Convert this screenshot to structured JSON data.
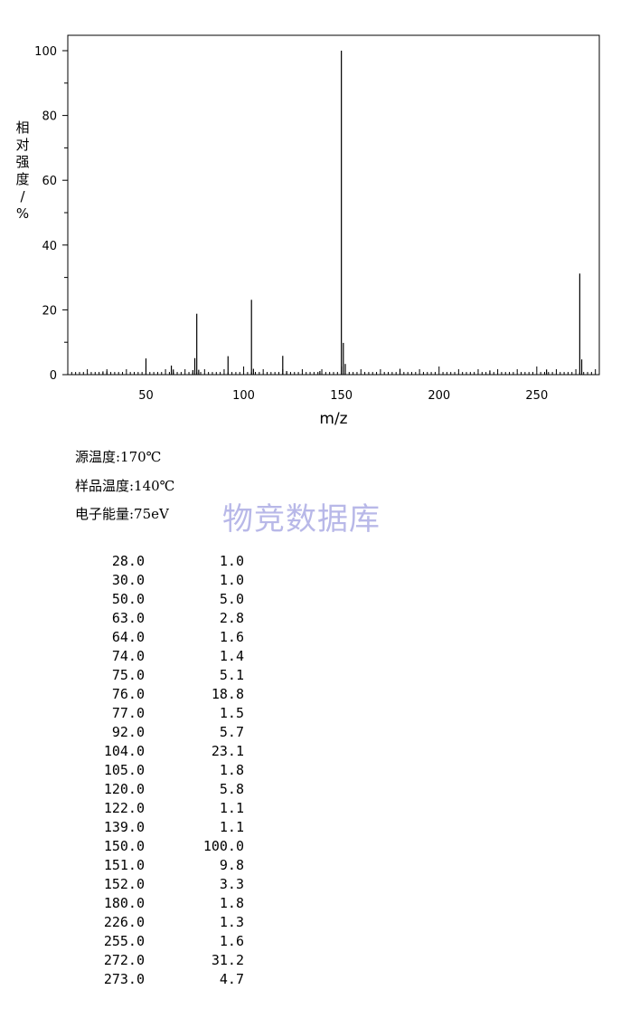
{
  "chart_data": {
    "type": "bar",
    "xlabel": "m/z",
    "ylabel": "相对强度/%",
    "xlim": [
      10,
      282
    ],
    "ylim": [
      0,
      105
    ],
    "xticks": [
      50,
      100,
      150,
      200,
      250
    ],
    "yticks": [
      0,
      20,
      40,
      60,
      80,
      100
    ],
    "peaks": [
      {
        "mz": 28.0,
        "intensity": 1.0
      },
      {
        "mz": 30.0,
        "intensity": 1.0
      },
      {
        "mz": 50.0,
        "intensity": 5.0
      },
      {
        "mz": 63.0,
        "intensity": 2.8
      },
      {
        "mz": 64.0,
        "intensity": 1.6
      },
      {
        "mz": 74.0,
        "intensity": 1.4
      },
      {
        "mz": 75.0,
        "intensity": 5.1
      },
      {
        "mz": 76.0,
        "intensity": 18.8
      },
      {
        "mz": 77.0,
        "intensity": 1.5
      },
      {
        "mz": 92.0,
        "intensity": 5.7
      },
      {
        "mz": 104.0,
        "intensity": 23.1
      },
      {
        "mz": 105.0,
        "intensity": 1.8
      },
      {
        "mz": 120.0,
        "intensity": 5.8
      },
      {
        "mz": 122.0,
        "intensity": 1.1
      },
      {
        "mz": 139.0,
        "intensity": 1.1
      },
      {
        "mz": 150.0,
        "intensity": 100.0
      },
      {
        "mz": 151.0,
        "intensity": 9.8
      },
      {
        "mz": 152.0,
        "intensity": 3.3
      },
      {
        "mz": 180.0,
        "intensity": 1.8
      },
      {
        "mz": 226.0,
        "intensity": 1.3
      },
      {
        "mz": 255.0,
        "intensity": 1.6
      },
      {
        "mz": 272.0,
        "intensity": 31.2
      },
      {
        "mz": 273.0,
        "intensity": 4.7
      }
    ]
  },
  "conditions": [
    "源温度:170℃",
    "样品温度:140℃",
    "电子能量:75eV"
  ],
  "watermark": "物竞数据库",
  "peak_table": [
    {
      "mz": "28.0",
      "intensity": "1.0"
    },
    {
      "mz": "30.0",
      "intensity": "1.0"
    },
    {
      "mz": "50.0",
      "intensity": "5.0"
    },
    {
      "mz": "63.0",
      "intensity": "2.8"
    },
    {
      "mz": "64.0",
      "intensity": "1.6"
    },
    {
      "mz": "74.0",
      "intensity": "1.4"
    },
    {
      "mz": "75.0",
      "intensity": "5.1"
    },
    {
      "mz": "76.0",
      "intensity": "18.8"
    },
    {
      "mz": "77.0",
      "intensity": "1.5"
    },
    {
      "mz": "92.0",
      "intensity": "5.7"
    },
    {
      "mz": "104.0",
      "intensity": "23.1"
    },
    {
      "mz": "105.0",
      "intensity": "1.8"
    },
    {
      "mz": "120.0",
      "intensity": "5.8"
    },
    {
      "mz": "122.0",
      "intensity": "1.1"
    },
    {
      "mz": "139.0",
      "intensity": "1.1"
    },
    {
      "mz": "150.0",
      "intensity": "100.0"
    },
    {
      "mz": "151.0",
      "intensity": "9.8"
    },
    {
      "mz": "152.0",
      "intensity": "3.3"
    },
    {
      "mz": "180.0",
      "intensity": "1.8"
    },
    {
      "mz": "226.0",
      "intensity": "1.3"
    },
    {
      "mz": "255.0",
      "intensity": "1.6"
    },
    {
      "mz": "272.0",
      "intensity": "31.2"
    },
    {
      "mz": "273.0",
      "intensity": "4.7"
    }
  ]
}
